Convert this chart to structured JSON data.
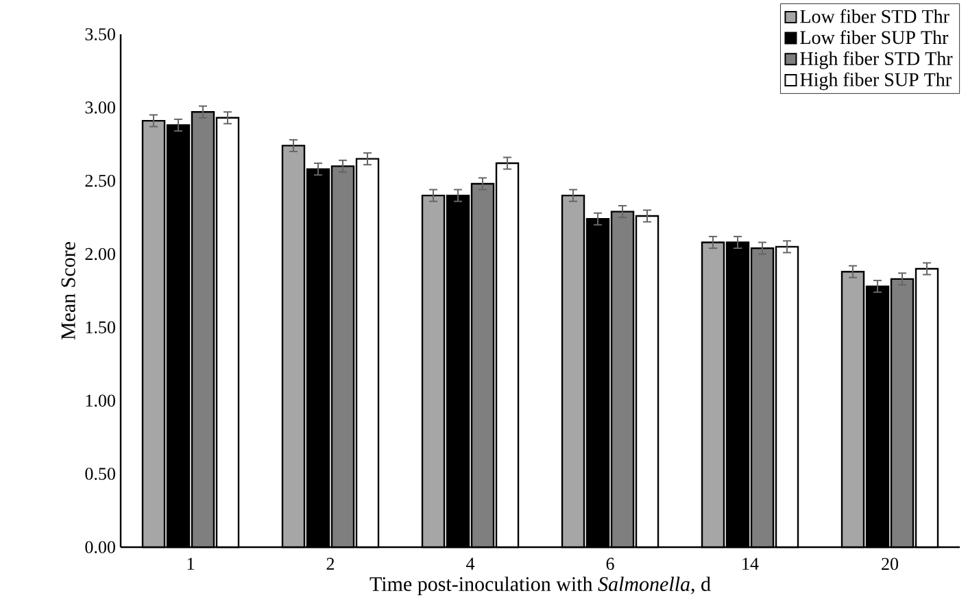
{
  "chart_data": {
    "type": "bar",
    "xlabel": "Time post-inoculation with *Salmonella*, d",
    "ylabel": "Mean Score",
    "categories": [
      "1",
      "2",
      "4",
      "6",
      "14",
      "20"
    ],
    "series": [
      {
        "name": "Low fiber STD Thr",
        "color": "#a6a6a6",
        "values": [
          2.91,
          2.74,
          2.4,
          2.4,
          2.08,
          1.88
        ],
        "errors": [
          0.04,
          0.04,
          0.04,
          0.04,
          0.04,
          0.04
        ]
      },
      {
        "name": "Low fiber SUP Thr",
        "color": "#000000",
        "values": [
          2.88,
          2.58,
          2.4,
          2.24,
          2.08,
          1.78
        ],
        "errors": [
          0.04,
          0.04,
          0.04,
          0.04,
          0.04,
          0.04
        ]
      },
      {
        "name": "High fiber STD Thr",
        "color": "#7f7f7f",
        "values": [
          2.97,
          2.6,
          2.48,
          2.29,
          2.04,
          1.83
        ],
        "errors": [
          0.04,
          0.04,
          0.04,
          0.04,
          0.04,
          0.04
        ]
      },
      {
        "name": "High fiber SUP Thr",
        "color": "#ffffff",
        "values": [
          2.93,
          2.65,
          2.62,
          2.26,
          2.05,
          1.9
        ],
        "errors": [
          0.04,
          0.04,
          0.04,
          0.04,
          0.04,
          0.04
        ]
      }
    ],
    "ylim": [
      0,
      3.5
    ],
    "yticks": [
      {
        "value": 0,
        "label": "0.00"
      },
      {
        "value": 0.5,
        "label": "0.50"
      },
      {
        "value": 1,
        "label": "1.00"
      },
      {
        "value": 1.5,
        "label": "1.50"
      },
      {
        "value": 2,
        "label": "2.00"
      },
      {
        "value": 2.5,
        "label": "2.50"
      },
      {
        "value": 3,
        "label": "3.00"
      },
      {
        "value": 3.5,
        "label": "3.50"
      }
    ],
    "legend": "top right",
    "grid": false
  }
}
